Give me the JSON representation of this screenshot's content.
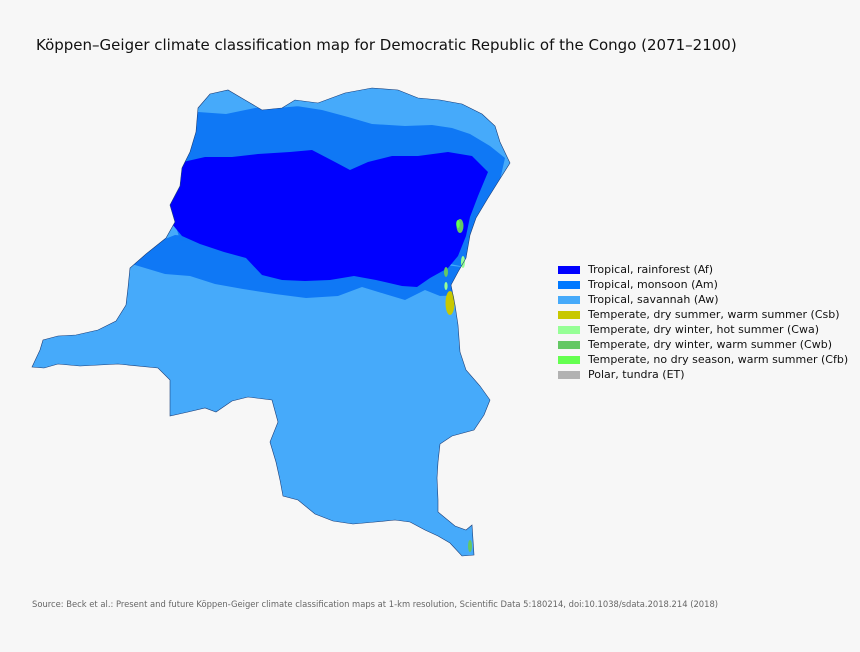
{
  "title": "Köppen–Geiger climate classification map for Democratic Republic of the Congo (2071–2100)",
  "legend": [
    {
      "label": "Tropical, rainforest (Af)",
      "color": "#0000ff"
    },
    {
      "label": "Tropical, monsoon (Am)",
      "color": "#0078ff"
    },
    {
      "label": "Tropical, savannah (Aw)",
      "color": "#46aafa"
    },
    {
      "label": "Temperate, dry summer, warm summer (Csb)",
      "color": "#c8c800"
    },
    {
      "label": "Temperate, dry winter, hot summer (Cwa)",
      "color": "#96ff96"
    },
    {
      "label": "Temperate, dry winter, warm summer (Cwb)",
      "color": "#64c864"
    },
    {
      "label": "Temperate, no dry season, warm summer (Cfb)",
      "color": "#64ff50"
    },
    {
      "label": "Polar, tundra (ET)",
      "color": "#b2b2b2"
    }
  ],
  "source": "Source: Beck et al.: Present and future Köppen-Geiger climate classification maps at 1-km resolution, Scientific Data 5:180214, doi:10.1038/sdata.2018.214 (2018)"
}
